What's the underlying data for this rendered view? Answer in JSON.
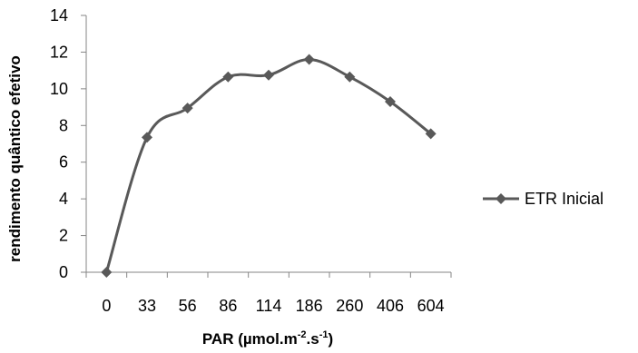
{
  "chart_data": {
    "type": "line",
    "categories": [
      "0",
      "33",
      "56",
      "86",
      "114",
      "186",
      "260",
      "406",
      "604"
    ],
    "series": [
      {
        "name": "ETR Inicial",
        "values": [
          0,
          7.35,
          8.95,
          10.65,
          10.75,
          11.6,
          10.65,
          9.3,
          7.55
        ],
        "color": "#595959"
      }
    ],
    "ylim": [
      0,
      14
    ],
    "yticks": [
      "0",
      "2",
      "4",
      "6",
      "8",
      "10",
      "12",
      "14"
    ],
    "ylabel": "rendimento quântico efetivo",
    "xlabel_parts": {
      "main": "PAR (µmol.m",
      "sup1": "-2",
      "mid": ".s",
      "sup2": "-1",
      "end": ")"
    },
    "legend": {
      "position": "right",
      "label": "ETR Inicial"
    },
    "grid": false,
    "axis_color": "#868686"
  }
}
